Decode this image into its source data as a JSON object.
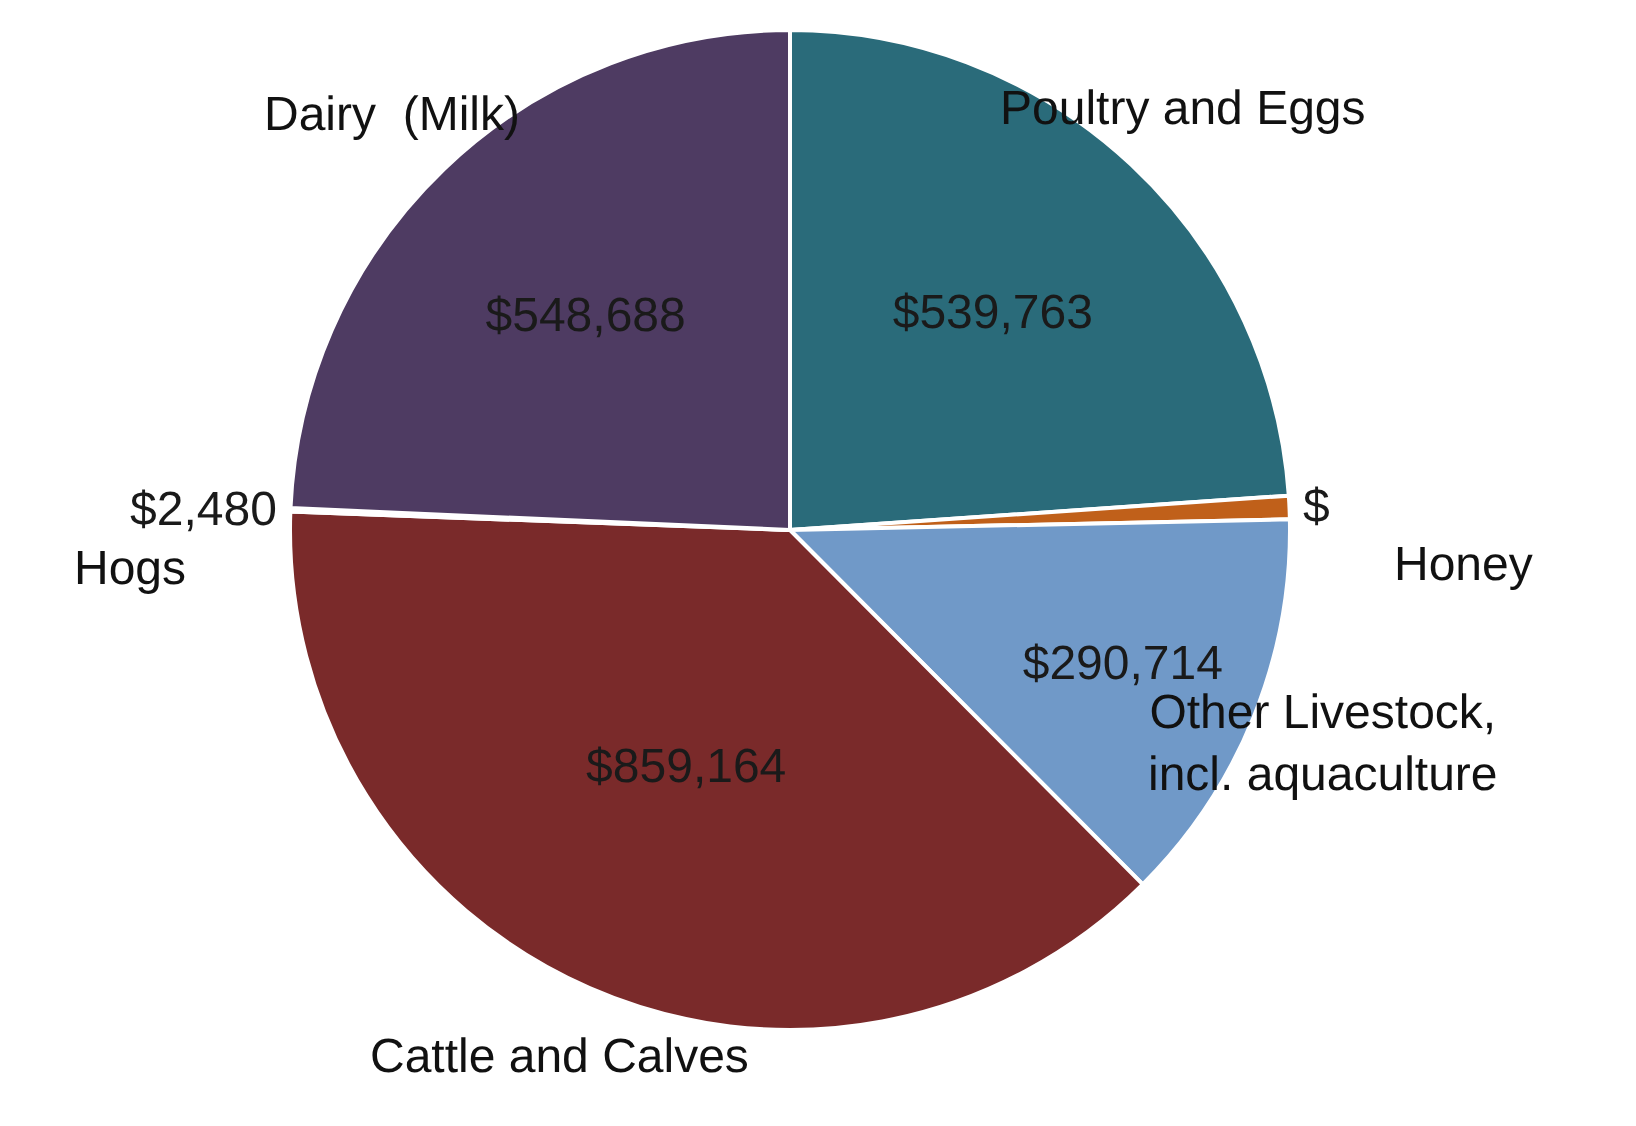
{
  "chart_data": {
    "type": "pie",
    "categories": [
      "Poultry and Eggs",
      "Honey",
      "Other Livestock, incl. aquaculture",
      "Cattle and Calves",
      "Hogs",
      "Dairy  (Milk)"
    ],
    "values": [
      539763,
      17000,
      290714,
      859164,
      2480,
      548688
    ],
    "value_labels": [
      "$539,763",
      "$",
      "$290,714",
      "$859,164",
      "$2,480",
      "$548,688"
    ],
    "colors": [
      "#2a6b7a",
      "#c0601a",
      "#7099c8",
      "#7a2a2a",
      "#9a9a9a",
      "#4e3b62"
    ],
    "legend": false
  }
}
